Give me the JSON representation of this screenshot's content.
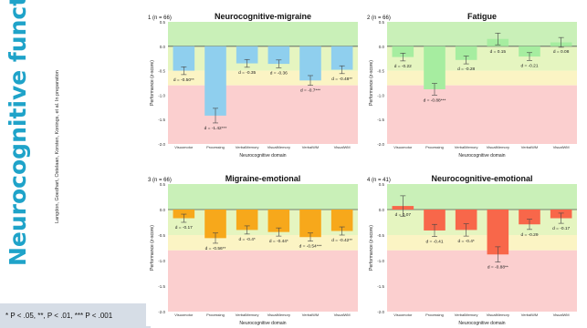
{
  "sidebar": {
    "title": "Neurocognitive functioning",
    "authors": "Langdon, Goedhart, Ostelaan, Korsten, Konings, et al. In preparation",
    "footnote": "* P < .05, **, P < .01, *** P < .001"
  },
  "colors": {
    "green_zone": "#c9f0b8",
    "yellow_zone": "#fbf4c4",
    "red_zone": "#fbcfcf",
    "sidebar_title": "#1fa3c9",
    "footnote_bg": "#d6dde6"
  },
  "chart_data": [
    {
      "type": "bar",
      "title": "Neurocognitive-migraine",
      "panel_label": "1 (n = 66)",
      "xlabel": "Neurocognitive domain",
      "ylabel": "Performance (z-score)",
      "categories": [
        "Visuomotor",
        "Processing",
        "VerbalMemory",
        "VisualMemory",
        "VerbalWM",
        "VisualWM"
      ],
      "values": [
        -0.5,
        -1.42,
        -0.35,
        -0.36,
        -0.7,
        -0.48
      ],
      "errors": [
        0.08,
        0.15,
        0.08,
        0.08,
        0.1,
        0.08
      ],
      "data_labels": [
        "d = -0.50**",
        "d = -1.42***",
        "d = -0.35",
        "d = -0.36",
        "d = -0.7***",
        "d = -0.48**"
      ],
      "color": "#8fcfee",
      "ylim": [
        -2.0,
        0.5
      ],
      "yticks": [
        0.5,
        0.0,
        -0.5,
        -1.0,
        -1.5,
        -2.0
      ],
      "ytick_labels": [
        "0.5",
        "0.0",
        "-0.5",
        "-1.0",
        "-1.5",
        "-2.0"
      ]
    },
    {
      "type": "bar",
      "title": "Fatigue",
      "panel_label": "2 (n = 66)",
      "xlabel": "Neurocognitive domain",
      "ylabel": "Performance (z-score)",
      "categories": [
        "Visuomotor",
        "Processing",
        "VerbalMemory",
        "VisualMemory",
        "VerbalWM",
        "VisualWM"
      ],
      "values": [
        -0.22,
        -0.88,
        -0.28,
        0.15,
        -0.21,
        0.08
      ],
      "errors": [
        0.08,
        0.12,
        0.08,
        0.12,
        0.08,
        0.1
      ],
      "data_labels": [
        "d = -0.22",
        "d = -0.88***",
        "d = -0.28",
        "d = 0.15",
        "d = -0.21",
        "d = 0.08"
      ],
      "color": "#a6eda0",
      "ylim": [
        -2.0,
        0.5
      ],
      "yticks": [
        0.5,
        0.0,
        -0.5,
        -1.0,
        -1.5,
        -2.0
      ],
      "ytick_labels": [
        "0.5",
        "0.0",
        "-0.5",
        "-1.0",
        "-1.5",
        "-2.0"
      ]
    },
    {
      "type": "bar",
      "title": "Migraine-emotional",
      "panel_label": "3 (n = 66)",
      "xlabel": "Neurocognitive domain",
      "ylabel": "Performance (z-score)",
      "categories": [
        "Visuomotor",
        "Processing",
        "VerbalMemory",
        "VisualMemory",
        "VerbalWM",
        "VisualWM"
      ],
      "values": [
        -0.17,
        -0.56,
        -0.4,
        -0.44,
        -0.54,
        -0.42
      ],
      "errors": [
        0.08,
        0.1,
        0.08,
        0.08,
        0.08,
        0.08
      ],
      "data_labels": [
        "d = -0.17",
        "d = -0.56**",
        "d = -0.4*",
        "d = -0.44*",
        "d = -0.54***",
        "d = -0.42**"
      ],
      "color": "#f7a81b",
      "ylim": [
        -2.0,
        0.5
      ],
      "yticks": [
        0.5,
        0.0,
        -0.5,
        -1.0,
        -1.5,
        -2.0
      ],
      "ytick_labels": [
        "0.5",
        "0.0",
        "-0.5",
        "-1.0",
        "-1.5",
        "-2.0"
      ]
    },
    {
      "type": "bar",
      "title": "Neurocognitive-emotional",
      "panel_label": "4 (n = 41)",
      "xlabel": "Neurocognitive domain",
      "ylabel": "Performance (z-score)",
      "categories": [
        "Visuomotor",
        "Processing",
        "VerbalMemory",
        "VisualMemory",
        "VerbalWM",
        "VisualWM"
      ],
      "values": [
        0.07,
        -0.41,
        -0.4,
        -0.88,
        -0.29,
        -0.17
      ],
      "errors": [
        0.2,
        0.12,
        0.12,
        0.15,
        0.1,
        0.1
      ],
      "data_labels": [
        "d = 0.07",
        "d = -0.41",
        "d = -0.4*",
        "d = -0.88**",
        "d = -0.29",
        "d = -0.17"
      ],
      "color": "#f8674a",
      "ylim": [
        -2.0,
        0.5
      ],
      "yticks": [
        0.5,
        0.0,
        -0.5,
        -1.0,
        -1.5,
        -2.0
      ],
      "ytick_labels": [
        "0.5",
        "0.0",
        "-0.5",
        "-1.0",
        "-1.5",
        "-2.0"
      ]
    }
  ]
}
